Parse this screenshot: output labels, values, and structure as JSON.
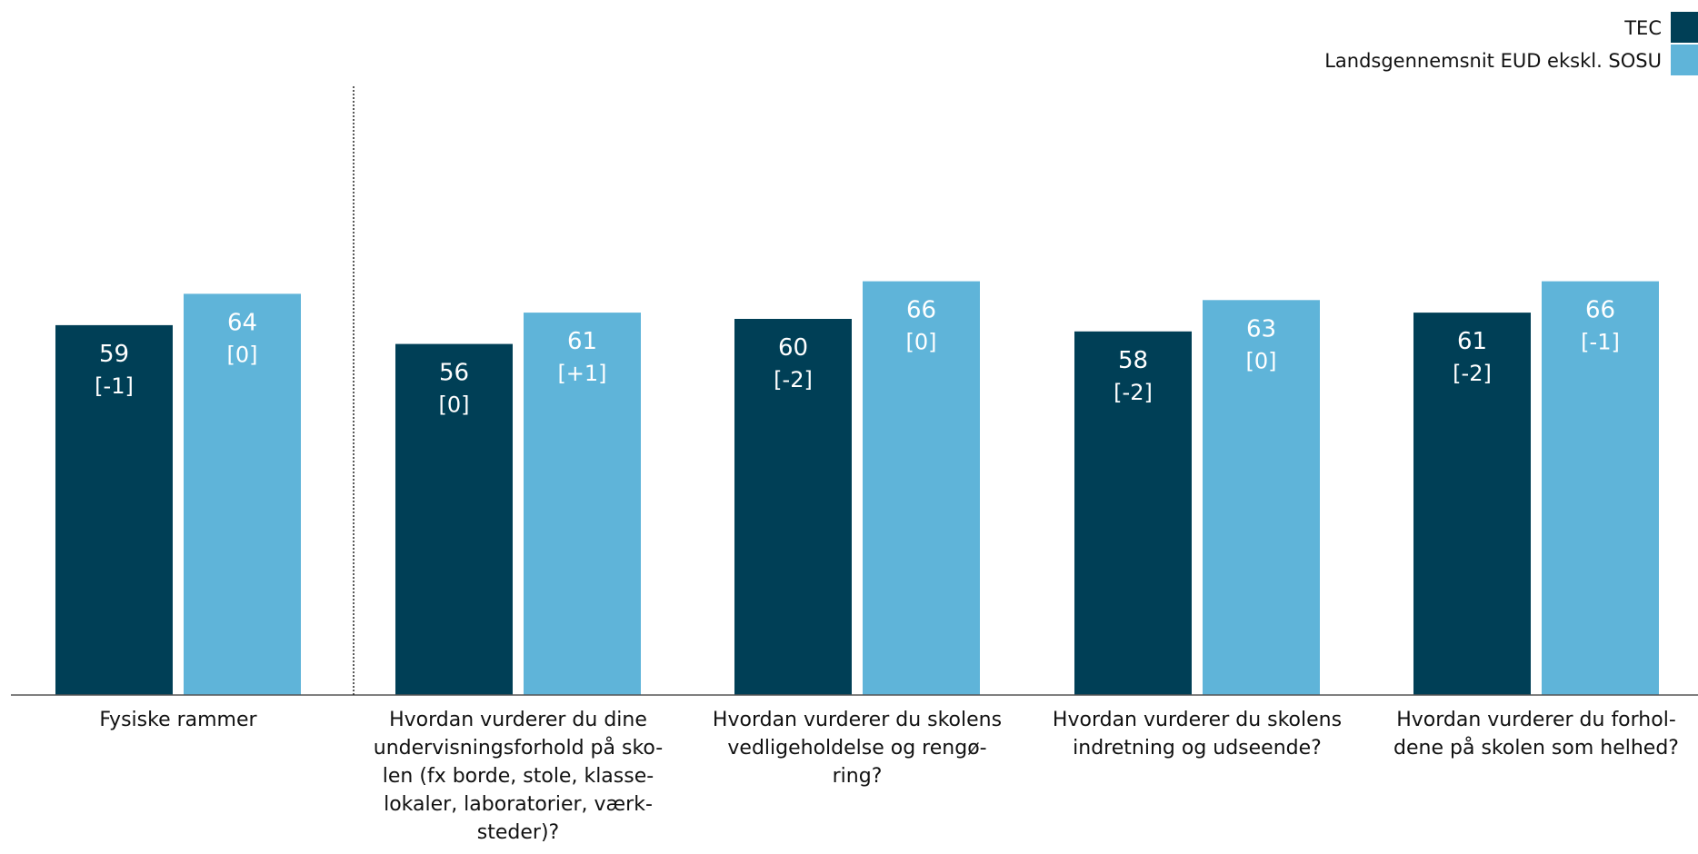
{
  "chart_data": {
    "type": "bar",
    "categories": [
      "Fysiske rammer",
      "Hvordan vurderer du dine undervisningsforhold på sko-len (fx borde, stole, klasse-lokaler, laboratorier, værk-steder)?",
      "Hvordan vurderer du skolens vedligeholdelse og rengø-ring?",
      "Hvordan vurderer du skolens indretning og udseende?",
      "Hvordan vurderer du forhol-dene på skolen som helhed?"
    ],
    "category_lines": [
      [
        "Fysiske rammer"
      ],
      [
        "Hvordan vurderer du dine",
        "undervisningsforhold på sko-",
        "len (fx borde, stole, klasse-",
        "lokaler, laboratorier, værk-",
        "steder)?"
      ],
      [
        "Hvordan vurderer du skolens",
        "vedligeholdelse og rengø-",
        "ring?"
      ],
      [
        "Hvordan vurderer du skolens",
        "indretning og udseende?"
      ],
      [
        "Hvordan vurderer du forhol-",
        "dene på skolen som helhed?"
      ]
    ],
    "series": [
      {
        "name": "TEC",
        "color": "#003f56",
        "values": [
          59,
          56,
          60,
          58,
          61
        ],
        "changes": [
          "[-1]",
          "[0]",
          "[-2]",
          "[-2]",
          "[-2]"
        ]
      },
      {
        "name": "Landsgennemsnit EUD ekskl. SOSU",
        "color": "#5fb4d9",
        "values": [
          64,
          61,
          66,
          63,
          66
        ],
        "changes": [
          "[0]",
          "[+1]",
          "[0]",
          "[0]",
          "[-1]"
        ]
      }
    ],
    "ylim": [
      0,
      100
    ],
    "grid": false,
    "legend_position": "top-right",
    "separator_after_category": 0,
    "axis_color": "#555555",
    "label_color": "#ffffff"
  }
}
